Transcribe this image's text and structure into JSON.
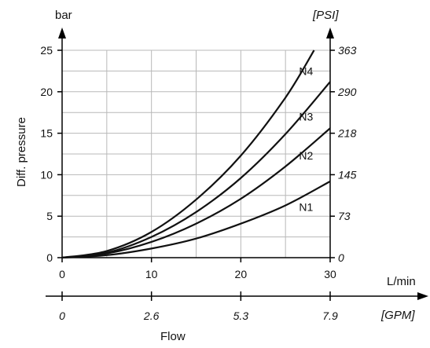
{
  "chart_data": {
    "type": "line",
    "y_unit_left": "bar",
    "y_unit_right": "[PSI]",
    "x_unit_top": "L/min",
    "x_unit_bottom": "[GPM]",
    "ylabel": "Diff. pressure",
    "xlabel": "Flow",
    "xlim": [
      0,
      30
    ],
    "ylim": [
      0,
      25
    ],
    "x_ticks": [
      "0",
      "10",
      "20",
      "30"
    ],
    "x_ticks_gpm": [
      "0",
      "2.6",
      "5.3",
      "7.9"
    ],
    "y_ticks": [
      "0",
      "5",
      "10",
      "15",
      "20",
      "25"
    ],
    "y_ticks_psi": [
      "0",
      "73",
      "145",
      "218",
      "290",
      "363"
    ],
    "grid": true,
    "series": [
      {
        "name": "N1",
        "x": [
          0,
          5,
          10,
          15,
          20,
          25,
          30
        ],
        "y": [
          0,
          0.3,
          1.1,
          2.3,
          4.1,
          6.3,
          9.2
        ]
      },
      {
        "name": "N2",
        "x": [
          0,
          5,
          10,
          15,
          20,
          25,
          30
        ],
        "y": [
          0,
          0.5,
          1.9,
          4.1,
          7.1,
          11.0,
          15.6
        ]
      },
      {
        "name": "N3",
        "x": [
          0,
          5,
          10,
          15,
          20,
          25,
          30
        ],
        "y": [
          0,
          0.6,
          2.5,
          5.5,
          9.6,
          14.9,
          21.2
        ]
      },
      {
        "name": "N4",
        "x": [
          0,
          5,
          10,
          15,
          20,
          25,
          28.2
        ],
        "y": [
          0,
          0.8,
          3.1,
          7.0,
          12.3,
          19.3,
          25
        ]
      }
    ],
    "series_label_y": [
      6.1,
      12.3,
      17.0,
      22.5
    ],
    "colors": {
      "lines": "#111111",
      "grid": "#b8b8b8",
      "axis": "#000000"
    }
  }
}
